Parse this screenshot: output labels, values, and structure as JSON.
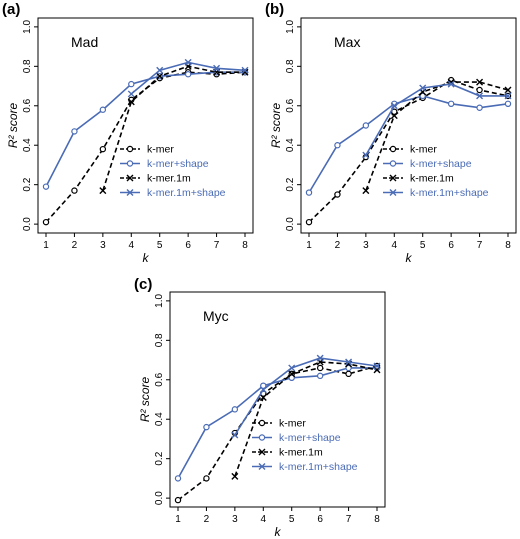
{
  "colors": {
    "black": "#000000",
    "blue": "#4a6bb5"
  },
  "chart_data": [
    {
      "type": "line",
      "panel_label": "(a)",
      "title": "Mad",
      "xlabel": "k",
      "ylabel": "R² score",
      "xlim": [
        1,
        8
      ],
      "ylim": [
        0,
        1.0
      ],
      "x_ticks": [
        "1",
        "2",
        "3",
        "4",
        "5",
        "6",
        "7",
        "8"
      ],
      "y_ticks": [
        "0.0",
        "0.2",
        "0.4",
        "0.6",
        "0.8",
        "1.0"
      ],
      "legend_position": "bottom-right",
      "series": [
        {
          "name": "k-mer",
          "color": "#000000",
          "line": "dashed",
          "marker": "circle",
          "x": [
            1,
            2,
            3,
            4,
            5,
            6,
            7,
            8
          ],
          "y": [
            0.01,
            0.17,
            0.38,
            0.63,
            0.74,
            0.77,
            0.76,
            0.77
          ]
        },
        {
          "name": "k-mer+shape",
          "color": "#4a6bb5",
          "line": "solid",
          "marker": "circle",
          "x": [
            1,
            2,
            3,
            4,
            5,
            6,
            7,
            8
          ],
          "y": [
            0.19,
            0.47,
            0.58,
            0.71,
            0.75,
            0.76,
            0.77,
            0.77
          ]
        },
        {
          "name": "k-mer.1m",
          "color": "#000000",
          "line": "dashed",
          "marker": "x",
          "x": [
            3,
            4,
            5,
            6,
            7,
            8
          ],
          "y": [
            0.17,
            0.62,
            0.75,
            0.8,
            0.77,
            0.77
          ]
        },
        {
          "name": "k-mer.1m+shape",
          "color": "#4a6bb5",
          "line": "solid",
          "marker": "x",
          "x": [
            4,
            5,
            6,
            7,
            8
          ],
          "y": [
            0.66,
            0.78,
            0.82,
            0.79,
            0.78
          ]
        }
      ]
    },
    {
      "type": "line",
      "panel_label": "(b)",
      "title": "Max",
      "xlabel": "k",
      "ylabel": "R² score",
      "xlim": [
        1,
        8
      ],
      "ylim": [
        0,
        1.0
      ],
      "x_ticks": [
        "1",
        "2",
        "3",
        "4",
        "5",
        "6",
        "7",
        "8"
      ],
      "y_ticks": [
        "0.0",
        "0.2",
        "0.4",
        "0.6",
        "0.8",
        "1.0"
      ],
      "legend_position": "bottom-right",
      "series": [
        {
          "name": "k-mer",
          "color": "#000000",
          "line": "dashed",
          "marker": "circle",
          "x": [
            1,
            2,
            3,
            4,
            5,
            6,
            7,
            8
          ],
          "y": [
            0.01,
            0.15,
            0.34,
            0.57,
            0.64,
            0.73,
            0.68,
            0.65
          ]
        },
        {
          "name": "k-mer+shape",
          "color": "#4a6bb5",
          "line": "solid",
          "marker": "circle",
          "x": [
            1,
            2,
            3,
            4,
            5,
            6,
            7,
            8
          ],
          "y": [
            0.16,
            0.4,
            0.5,
            0.61,
            0.65,
            0.61,
            0.59,
            0.61
          ]
        },
        {
          "name": "k-mer.1m",
          "color": "#000000",
          "line": "dashed",
          "marker": "x",
          "x": [
            3,
            4,
            5,
            6,
            7,
            8
          ],
          "y": [
            0.17,
            0.55,
            0.67,
            0.72,
            0.72,
            0.68
          ]
        },
        {
          "name": "k-mer.1m+shape",
          "color": "#4a6bb5",
          "line": "solid",
          "marker": "x",
          "x": [
            3,
            4,
            5,
            6,
            7,
            8
          ],
          "y": [
            0.35,
            0.6,
            0.69,
            0.71,
            0.65,
            0.65
          ]
        }
      ]
    },
    {
      "type": "line",
      "panel_label": "(c)",
      "title": "Myc",
      "xlabel": "k",
      "ylabel": "R² score",
      "xlim": [
        1,
        8
      ],
      "ylim": [
        0,
        1.0
      ],
      "x_ticks": [
        "1",
        "2",
        "3",
        "4",
        "5",
        "6",
        "7",
        "8"
      ],
      "y_ticks": [
        "0.0",
        "0.2",
        "0.4",
        "0.6",
        "0.8",
        "1.0"
      ],
      "legend_position": "bottom-right",
      "series": [
        {
          "name": "k-mer",
          "color": "#000000",
          "line": "dashed",
          "marker": "circle",
          "x": [
            1,
            2,
            3,
            4,
            5,
            6,
            7,
            8
          ],
          "y": [
            -0.01,
            0.1,
            0.33,
            0.53,
            0.63,
            0.66,
            0.63,
            0.67
          ]
        },
        {
          "name": "k-mer+shape",
          "color": "#4a6bb5",
          "line": "solid",
          "marker": "circle",
          "x": [
            1,
            2,
            3,
            4,
            5,
            6,
            7,
            8
          ],
          "y": [
            0.1,
            0.36,
            0.45,
            0.57,
            0.61,
            0.62,
            0.66,
            0.66
          ]
        },
        {
          "name": "k-mer.1m",
          "color": "#000000",
          "line": "dashed",
          "marker": "x",
          "x": [
            3,
            4,
            5,
            6,
            7,
            8
          ],
          "y": [
            0.11,
            0.51,
            0.63,
            0.69,
            0.68,
            0.65
          ]
        },
        {
          "name": "k-mer.1m+shape",
          "color": "#4a6bb5",
          "line": "solid",
          "marker": "x",
          "x": [
            3,
            4,
            5,
            6,
            7,
            8
          ],
          "y": [
            0.32,
            0.55,
            0.66,
            0.71,
            0.69,
            0.67
          ]
        }
      ]
    }
  ]
}
